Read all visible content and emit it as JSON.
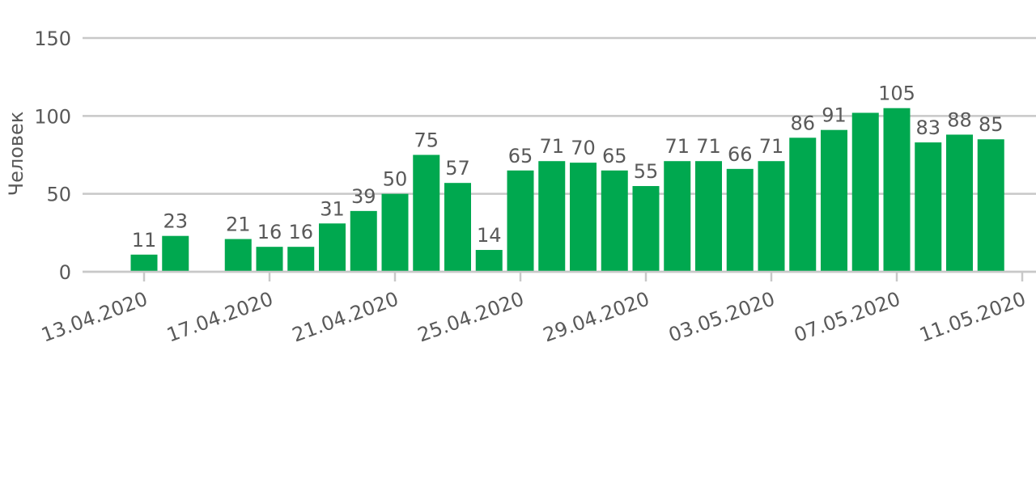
{
  "chart_data": {
    "type": "bar",
    "y_label": "Человек",
    "categories": [
      "13.04.2020",
      null,
      null,
      null,
      "17.04.2020",
      null,
      null,
      null,
      "21.04.2020",
      null,
      null,
      null,
      "25.04.2020",
      null,
      null,
      null,
      "29.04.2020",
      null,
      null,
      null,
      "03.05.2020",
      null,
      null,
      null,
      "07.05.2020",
      null,
      null,
      null,
      "11.05.2020"
    ],
    "values": [
      11,
      23,
      null,
      21,
      16,
      16,
      31,
      39,
      50,
      75,
      57,
      14,
      65,
      71,
      70,
      65,
      55,
      71,
      71,
      66,
      71,
      86,
      91,
      102,
      105,
      83,
      88,
      85,
      null
    ],
    "value_labels": [
      "11",
      "23",
      null,
      "21",
      "16",
      "16",
      "31",
      "39",
      "50",
      "75",
      "57",
      "14",
      "65",
      "71",
      "70",
      "65",
      "55",
      "71",
      "71",
      "66",
      "71",
      "86",
      "91",
      null,
      "105",
      "83",
      "88",
      "85",
      null
    ],
    "color": "#00a84f",
    "ylim": [
      0,
      150
    ],
    "yticks": [
      0,
      50,
      100,
      150
    ],
    "grid": true
  }
}
